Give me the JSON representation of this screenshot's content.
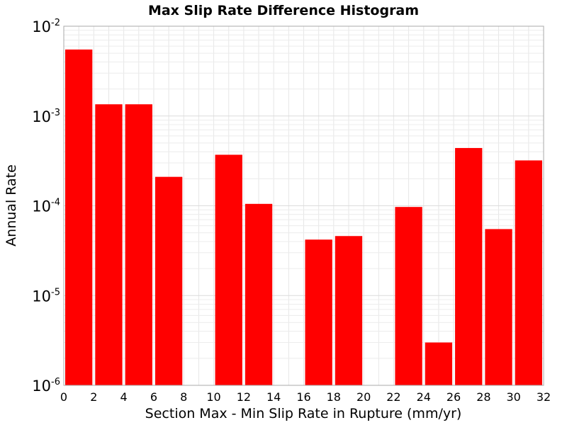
{
  "chart_data": {
    "type": "bar",
    "title": "Max Slip Rate Difference Histogram",
    "xlabel": "Section Max - Min Slip Rate in Rupture (mm/yr)",
    "ylabel": "Annual Rate",
    "xlim": [
      0,
      32
    ],
    "ylim": [
      1e-06,
      0.01
    ],
    "yscale": "log",
    "bin_width": 2,
    "grid": true,
    "x_ticks": [
      "0",
      "2",
      "4",
      "6",
      "8",
      "10",
      "12",
      "14",
      "16",
      "18",
      "20",
      "22",
      "24",
      "26",
      "28",
      "30",
      "32"
    ],
    "y_ticks": [
      {
        "base": "10",
        "exp": "-6"
      },
      {
        "base": "10",
        "exp": "-5"
      },
      {
        "base": "10",
        "exp": "-4"
      },
      {
        "base": "10",
        "exp": "-3"
      },
      {
        "base": "10",
        "exp": "-2"
      }
    ],
    "series": [
      {
        "color": "#ff0000",
        "bins": [
          {
            "x": 1,
            "value": 0.0055
          },
          {
            "x": 3,
            "value": 0.00135
          },
          {
            "x": 5,
            "value": 0.00135
          },
          {
            "x": 7,
            "value": 0.00021
          },
          {
            "x": 9,
            "value": null
          },
          {
            "x": 11,
            "value": 0.00037
          },
          {
            "x": 13,
            "value": 0.000105
          },
          {
            "x": 15,
            "value": null
          },
          {
            "x": 17,
            "value": 4.2e-05
          },
          {
            "x": 19,
            "value": 4.6e-05
          },
          {
            "x": 21,
            "value": null
          },
          {
            "x": 23,
            "value": 9.7e-05
          },
          {
            "x": 25,
            "value": 3e-06
          },
          {
            "x": 27,
            "value": 0.00044
          },
          {
            "x": 29,
            "value": 5.5e-05
          },
          {
            "x": 31,
            "value": 0.00032
          }
        ]
      }
    ]
  }
}
